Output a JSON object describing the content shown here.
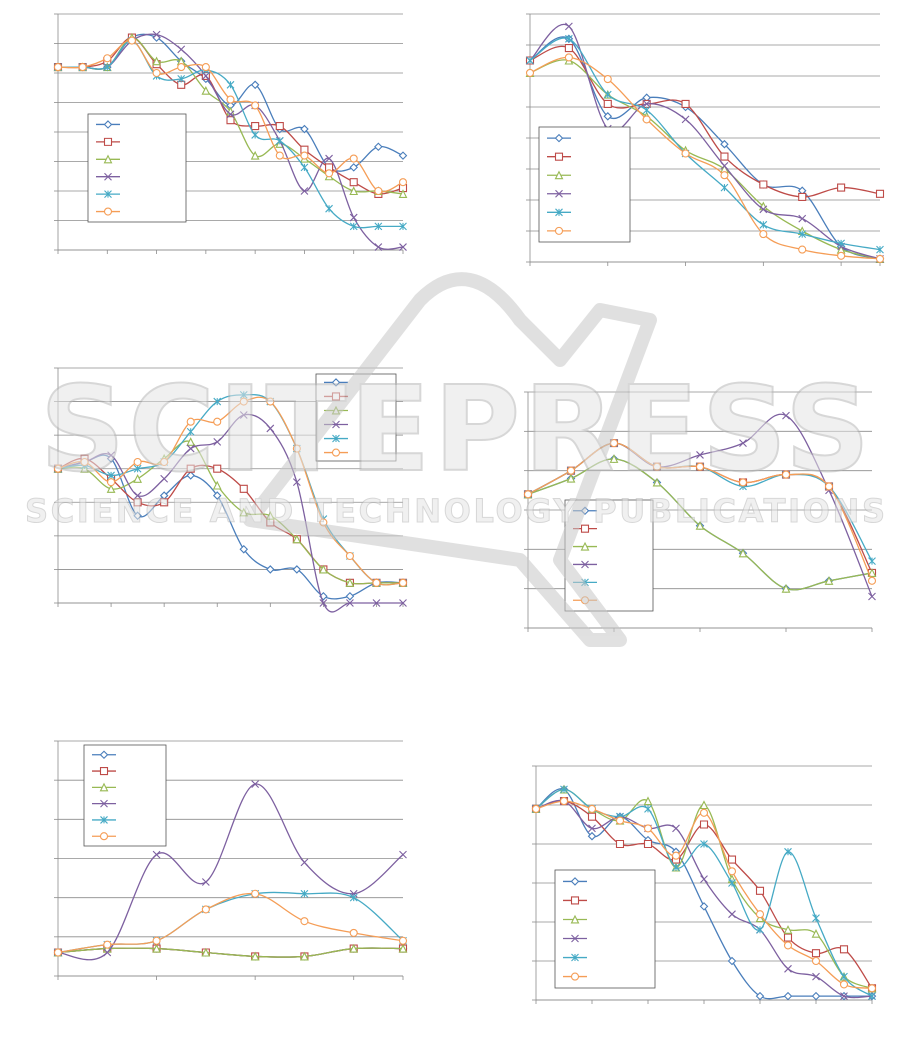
{
  "chart_data": [
    {
      "type": "line",
      "categories": [
        null,
        null,
        null,
        null,
        null,
        null,
        null,
        null,
        null,
        null,
        null,
        null,
        null,
        null,
        null
      ],
      "ylim": [
        0,
        8
      ],
      "yticks": [
        0,
        1,
        2,
        3,
        4,
        5,
        6,
        7,
        8
      ],
      "grid": true,
      "series": [
        {
          "color": "#4a7ebb",
          "marker": "diamond",
          "values": [
            6.2,
            6.2,
            6.2,
            7.2,
            7.2,
            6.4,
            5.8,
            4.9,
            5.6,
            4.1,
            4.1,
            2.8,
            2.8,
            3.5,
            3.2
          ]
        },
        {
          "color": "#be4b48",
          "marker": "square",
          "values": [
            6.2,
            6.2,
            6.4,
            7.2,
            6.3,
            5.6,
            5.9,
            4.4,
            4.2,
            4.2,
            3.4,
            2.8,
            2.3,
            1.9,
            2.1
          ]
        },
        {
          "color": "#98b954",
          "marker": "triangle",
          "values": [
            6.2,
            6.2,
            6.2,
            7.2,
            6.4,
            6.4,
            5.4,
            4.7,
            3.2,
            3.6,
            3.1,
            2.5,
            2.0,
            2.0,
            1.9
          ]
        },
        {
          "color": "#7d60a0",
          "marker": "x",
          "values": [
            6.2,
            6.2,
            6.2,
            7.1,
            7.3,
            6.8,
            5.9,
            4.6,
            4.9,
            3.7,
            2.0,
            3.1,
            1.1,
            0.1,
            0.1
          ]
        },
        {
          "color": "#46aac5",
          "marker": "star",
          "values": [
            6.2,
            6.2,
            6.2,
            7.1,
            5.9,
            5.8,
            6.1,
            5.6,
            3.9,
            3.7,
            2.8,
            1.4,
            0.8,
            0.8,
            0.8
          ]
        },
        {
          "color": "#f59d56",
          "marker": "circle",
          "values": [
            6.2,
            6.2,
            6.5,
            7.1,
            6.0,
            6.2,
            6.2,
            5.1,
            4.9,
            3.2,
            3.2,
            2.6,
            3.1,
            2.0,
            2.3
          ]
        }
      ]
    },
    {
      "type": "line",
      "categories": [
        null,
        null,
        null,
        null,
        null,
        null,
        null,
        null,
        null,
        null
      ],
      "ylim": [
        0,
        8
      ],
      "yticks": [
        0,
        1,
        2,
        3,
        4,
        5,
        6,
        7,
        8
      ],
      "grid": true,
      "series": [
        {
          "color": "#4a7ebb",
          "marker": "diamond",
          "values": [
            6.5,
            7.2,
            4.7,
            5.3,
            5.0,
            3.8,
            2.5,
            2.3,
            0.5,
            0.1
          ]
        },
        {
          "color": "#be4b48",
          "marker": "square",
          "values": [
            6.5,
            6.9,
            5.1,
            5.1,
            5.1,
            3.4,
            2.5,
            2.1,
            2.4,
            2.2
          ]
        },
        {
          "color": "#98b954",
          "marker": "triangle",
          "values": [
            6.1,
            6.5,
            5.4,
            4.7,
            3.6,
            3.0,
            1.8,
            1.0,
            0.4,
            0.1
          ]
        },
        {
          "color": "#7d60a0",
          "marker": "x",
          "values": [
            6.5,
            7.6,
            4.3,
            5.1,
            4.6,
            3.1,
            1.7,
            1.4,
            0.5,
            0.1
          ]
        },
        {
          "color": "#46aac5",
          "marker": "star",
          "values": [
            6.5,
            7.2,
            5.4,
            4.9,
            3.5,
            2.4,
            1.2,
            0.9,
            0.6,
            0.4
          ]
        },
        {
          "color": "#f59d56",
          "marker": "circle",
          "values": [
            6.1,
            6.6,
            5.9,
            4.6,
            3.5,
            2.8,
            0.9,
            0.4,
            0.2,
            0.1
          ]
        }
      ]
    },
    {
      "type": "line",
      "categories": [
        null,
        null,
        null,
        null,
        null,
        null,
        null,
        null,
        null,
        null,
        null,
        null,
        null,
        null
      ],
      "ylim": [
        0,
        7
      ],
      "yticks": [
        0,
        1,
        2,
        3,
        4,
        5,
        6,
        7
      ],
      "grid": true,
      "series": [
        {
          "color": "#4a7ebb",
          "marker": "diamond",
          "values": [
            4.0,
            4.2,
            4.3,
            2.6,
            3.2,
            3.8,
            3.2,
            1.6,
            1.0,
            1.0,
            0.2,
            0.2,
            0.6,
            0.6
          ]
        },
        {
          "color": "#be4b48",
          "marker": "square",
          "values": [
            4.0,
            4.3,
            3.7,
            3.0,
            3.0,
            4.0,
            4.0,
            3.4,
            2.4,
            1.9,
            1.0,
            0.6,
            0.6,
            0.6
          ]
        },
        {
          "color": "#98b954",
          "marker": "triangle",
          "values": [
            4.0,
            4.0,
            3.4,
            3.7,
            4.3,
            4.8,
            3.5,
            2.7,
            2.6,
            1.9,
            1.0,
            0.6,
            0.6,
            0.6
          ]
        },
        {
          "color": "#7d60a0",
          "marker": "x",
          "values": [
            4.0,
            4.2,
            4.4,
            3.2,
            3.7,
            4.6,
            4.8,
            5.6,
            5.2,
            3.6,
            0,
            0,
            0,
            0
          ]
        },
        {
          "color": "#46aac5",
          "marker": "star",
          "values": [
            4.0,
            4.1,
            3.8,
            4.0,
            4.2,
            5.1,
            6.0,
            6.2,
            6.0,
            4.6,
            2.5,
            1.4,
            0.6,
            0.6
          ]
        },
        {
          "color": "#f59d56",
          "marker": "circle",
          "values": [
            4.0,
            4.2,
            3.6,
            4.2,
            4.2,
            5.4,
            5.4,
            6.0,
            6.0,
            4.6,
            2.4,
            1.4,
            0.6,
            0.6
          ]
        }
      ]
    },
    {
      "type": "line",
      "categories": [
        null,
        null,
        null,
        null,
        null,
        null,
        null,
        null,
        null
      ],
      "ylim": [
        0,
        6
      ],
      "yticks": [
        0,
        1,
        2,
        3,
        4,
        5,
        6
      ],
      "grid": true,
      "series": [
        {
          "color": "#4a7ebb",
          "marker": "diamond",
          "values": [
            3.4,
            3.8,
            4.3,
            3.7,
            2.6,
            1.9,
            1.0,
            1.2,
            1.4
          ]
        },
        {
          "color": "#be4b48",
          "marker": "square",
          "values": [
            3.4,
            4.0,
            4.7,
            4.1,
            4.1,
            3.7,
            3.9,
            3.6,
            1.4
          ]
        },
        {
          "color": "#98b954",
          "marker": "triangle",
          "values": [
            3.4,
            3.8,
            4.3,
            3.7,
            2.6,
            1.9,
            1.0,
            1.2,
            1.4
          ]
        },
        {
          "color": "#7d60a0",
          "marker": "x",
          "values": [
            3.4,
            4.0,
            4.7,
            4.1,
            4.4,
            4.7,
            5.4,
            3.5,
            0.8
          ]
        },
        {
          "color": "#46aac5",
          "marker": "star",
          "values": [
            3.4,
            4.0,
            4.7,
            4.1,
            4.1,
            3.6,
            3.9,
            3.6,
            1.7
          ]
        },
        {
          "color": "#f59d56",
          "marker": "circle",
          "values": [
            3.4,
            4.0,
            4.7,
            4.1,
            4.1,
            3.7,
            3.9,
            3.6,
            1.2
          ]
        }
      ]
    },
    {
      "type": "line",
      "categories": [
        null,
        null,
        null,
        null,
        null,
        null,
        null,
        null
      ],
      "ylim": [
        0,
        6
      ],
      "yticks": [
        0,
        1,
        2,
        3,
        4,
        5,
        6
      ],
      "grid": true,
      "series": [
        {
          "color": "#4a7ebb",
          "marker": "diamond",
          "values": [
            0.6,
            0.7,
            0.7,
            0.6,
            0.5,
            0.5,
            0.7,
            0.7
          ]
        },
        {
          "color": "#be4b48",
          "marker": "square",
          "values": [
            0.6,
            0.7,
            0.7,
            0.6,
            0.5,
            0.5,
            0.7,
            0.7
          ]
        },
        {
          "color": "#98b954",
          "marker": "triangle",
          "values": [
            0.6,
            0.7,
            0.7,
            0.6,
            0.5,
            0.5,
            0.7,
            0.7
          ]
        },
        {
          "color": "#7d60a0",
          "marker": "x",
          "values": [
            0.6,
            0.6,
            3.1,
            2.4,
            4.9,
            2.9,
            2.1,
            3.1
          ]
        },
        {
          "color": "#46aac5",
          "marker": "star",
          "values": [
            0.6,
            0.8,
            0.9,
            1.7,
            2.1,
            2.1,
            2.0,
            0.9
          ]
        },
        {
          "color": "#f59d56",
          "marker": "circle",
          "values": [
            0.6,
            0.8,
            0.9,
            1.7,
            2.1,
            1.4,
            1.1,
            0.9
          ]
        }
      ]
    },
    {
      "type": "line",
      "categories": [
        null,
        null,
        null,
        null,
        null,
        null,
        null,
        null,
        null,
        null,
        null,
        null,
        null
      ],
      "ylim": [
        0,
        6
      ],
      "yticks": [
        0,
        1,
        2,
        3,
        4,
        5,
        6
      ],
      "grid": true,
      "series": [
        {
          "color": "#4a7ebb",
          "marker": "diamond",
          "values": [
            4.9,
            5.4,
            4.2,
            4.7,
            4.1,
            3.8,
            2.4,
            1.0,
            0.1,
            0.1,
            0.1,
            0.1,
            0.1
          ]
        },
        {
          "color": "#be4b48",
          "marker": "square",
          "values": [
            4.9,
            5.1,
            4.7,
            4.0,
            4.0,
            3.6,
            4.5,
            3.6,
            2.8,
            1.6,
            1.2,
            1.3,
            0.3
          ]
        },
        {
          "color": "#98b954",
          "marker": "triangle",
          "values": [
            4.9,
            5.4,
            4.9,
            4.6,
            5.1,
            3.4,
            5.0,
            3.1,
            2.1,
            1.8,
            1.7,
            0.6,
            0.3
          ]
        },
        {
          "color": "#7d60a0",
          "marker": "x",
          "values": [
            4.9,
            5.1,
            4.4,
            4.7,
            4.4,
            4.4,
            3.1,
            2.2,
            1.8,
            0.8,
            0.6,
            0.1,
            0.1
          ]
        },
        {
          "color": "#46aac5",
          "marker": "star",
          "values": [
            4.9,
            5.4,
            4.9,
            4.7,
            4.9,
            3.4,
            4.0,
            3.0,
            1.8,
            3.8,
            2.1,
            0.6,
            0.1
          ]
        },
        {
          "color": "#f59d56",
          "marker": "circle",
          "values": [
            4.9,
            5.1,
            4.9,
            4.6,
            4.4,
            3.7,
            4.8,
            3.3,
            2.2,
            1.4,
            1.0,
            0.4,
            0.3
          ]
        }
      ]
    }
  ],
  "watermark": {
    "title": "SCITEPRESS",
    "subtitle": "SCIENCE AND TECHNOLOGY PUBLICATIONS"
  }
}
